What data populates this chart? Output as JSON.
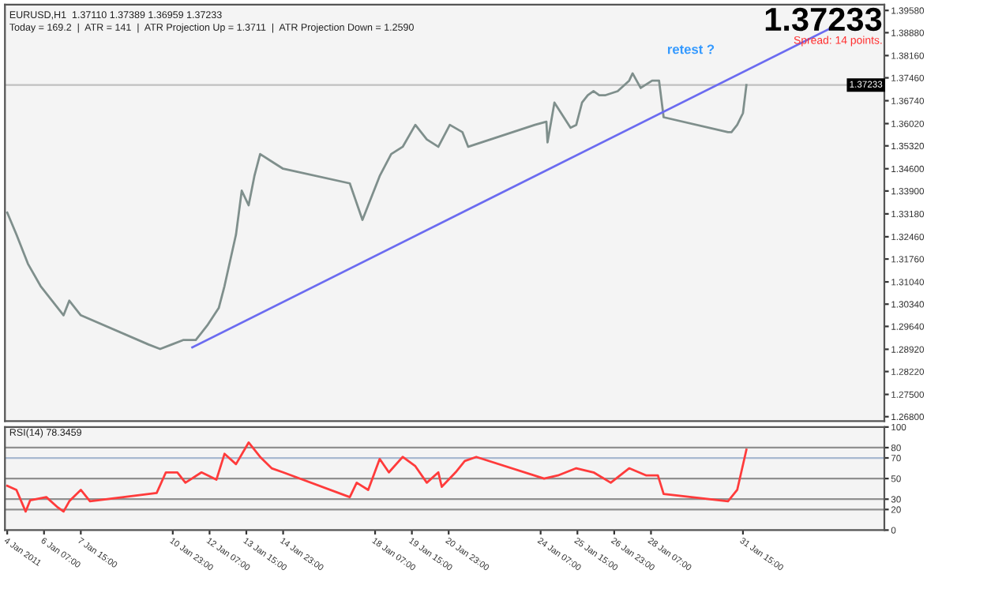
{
  "chart_data": [
    {
      "type": "line",
      "title": "EURUSD,H1  1.37110 1.37389 1.36959 1.37233",
      "subtitle": "Today = 169.2  |  ATR = 141  |  ATR Projection Up = 1.3711  |  ATR Projection Down = 1.2590",
      "series": [
        {
          "color": "#7f8f8c",
          "x": [
            "2011-01-04T23:00",
            "2011-01-05T07:00",
            "2011-01-05T17:00",
            "2011-01-06T04:00",
            "2011-01-06T14:00",
            "2011-01-07T00:00",
            "2011-01-07T05:00",
            "2011-01-07T15:00",
            "2011-01-10T02:00",
            "2011-01-10T12:00",
            "2011-01-10T22:00",
            "2011-01-11T08:00",
            "2011-01-11T19:00",
            "2011-01-12T05:00",
            "2011-01-12T15:00",
            "2011-01-12T20:00",
            "2011-01-13T06:00",
            "2011-01-13T11:00",
            "2011-01-13T17:00",
            "2011-01-13T22:00",
            "2011-01-14T03:00",
            "2011-01-14T13:00",
            "2011-01-14T23:00",
            "2011-01-17T09:00",
            "2011-01-17T20:00",
            "2011-01-18T01:00",
            "2011-01-18T11:00",
            "2011-01-18T21:00",
            "2011-01-19T07:00",
            "2011-01-19T18:00",
            "2011-01-20T04:00",
            "2011-01-20T14:00",
            "2011-01-21T00:00",
            "2011-01-21T11:00",
            "2011-01-21T16:00",
            "2011-01-24T02:00",
            "2011-01-24T12:00",
            "2011-01-24T13:00",
            "2011-01-24T19:00",
            "2011-01-25T09:00",
            "2011-01-25T14:00",
            "2011-01-25T19:00",
            "2011-01-26T00:00",
            "2011-01-26T05:00",
            "2011-01-26T10:00",
            "2011-01-26T15:00",
            "2011-01-27T02:00",
            "2011-01-27T12:00",
            "2011-01-27T15:00",
            "2011-01-27T22:00",
            "2011-01-28T08:00",
            "2011-01-28T14:00",
            "2011-01-28T18:00",
            "2011-01-31T02:00",
            "2011-01-31T05:00",
            "2011-01-31T10:00",
            "2011-01-31T15:00",
            "2011-01-31T18:00"
          ],
          "values": [
            1.3322,
            1.3253,
            1.3161,
            1.3091,
            1.3045,
            1.2999,
            1.3045,
            1.2999,
            1.2907,
            1.2893,
            1.2907,
            1.2921,
            1.2921,
            1.2967,
            1.3022,
            1.3091,
            1.3253,
            1.3391,
            1.3345,
            1.3437,
            1.3506,
            1.3483,
            1.346,
            1.3414,
            1.3299,
            1.3345,
            1.3437,
            1.3506,
            1.3529,
            1.3598,
            1.3552,
            1.3529,
            1.3598,
            1.3575,
            1.3529,
            1.3598,
            1.3608,
            1.3543,
            1.3668,
            1.3589,
            1.3598,
            1.3668,
            1.3691,
            1.3704,
            1.3691,
            1.3691,
            1.3704,
            1.3737,
            1.376,
            1.3714,
            1.3737,
            1.3737,
            1.3622,
            1.3575,
            1.3575,
            1.3598,
            1.3635,
            1.3723
          ]
        },
        {
          "color": "#6b6bf0",
          "x": [
            "2011-01-11T16:00",
            "2011-02-03T22:00"
          ],
          "values": [
            1.2898,
            1.3907
          ]
        }
      ],
      "ylim": [
        1.2666,
        1.3976
      ],
      "xlim": [
        "2011-01-04T21:00",
        "2011-02-05T18:00"
      ],
      "yticks": [
        {
          "value": 1.3958,
          "label": "1.39580"
        },
        {
          "value": 1.3888,
          "label": "1.38880"
        },
        {
          "value": 1.3816,
          "label": "1.38160"
        },
        {
          "value": 1.3746,
          "label": "1.37460"
        },
        {
          "value": 1.3674,
          "label": "1.36740"
        },
        {
          "value": 1.3602,
          "label": "1.36020"
        },
        {
          "value": 1.3532,
          "label": "1.35320"
        },
        {
          "value": 1.346,
          "label": "1.34600"
        },
        {
          "value": 1.339,
          "label": "1.33900"
        },
        {
          "value": 1.3318,
          "label": "1.33180"
        },
        {
          "value": 1.3246,
          "label": "1.32460"
        },
        {
          "value": 1.3176,
          "label": "1.31760"
        },
        {
          "value": 1.3104,
          "label": "1.31040"
        },
        {
          "value": 1.3034,
          "label": "1.30340"
        },
        {
          "value": 1.2964,
          "label": "1.29640"
        },
        {
          "value": 1.2892,
          "label": "1.28920"
        },
        {
          "value": 1.2822,
          "label": "1.28220"
        },
        {
          "value": 1.275,
          "label": "1.27500"
        },
        {
          "value": 1.268,
          "label": "1.26800"
        }
      ],
      "tick_labels": "y",
      "ref_lines": [
        {
          "axis": "y",
          "value": 1.37233,
          "label": "1.37233",
          "color": "#c0c0c0"
        }
      ],
      "annotations": [
        "retest ?",
        "1.37233",
        "Spread: 14 points."
      ]
    },
    {
      "type": "line",
      "title": "RSI(14) 78.3459",
      "series": [
        {
          "color": "#ff3b3b",
          "x": [
            "2011-01-04T23:00",
            "2011-01-05T07:00",
            "2011-01-05T15:00",
            "2011-01-05T19:00",
            "2011-01-06T09:00",
            "2011-01-06T19:00",
            "2011-01-07T00:00",
            "2011-01-07T05:00",
            "2011-01-07T15:00",
            "2011-01-07T23:00",
            "2011-01-10T09:00",
            "2011-01-10T17:00",
            "2011-01-11T03:00",
            "2011-01-11T10:00",
            "2011-01-12T00:00",
            "2011-01-12T13:00",
            "2011-01-12T20:00",
            "2011-01-13T06:00",
            "2011-01-13T17:00",
            "2011-01-14T03:00",
            "2011-01-14T13:00",
            "2011-01-14T23:00",
            "2011-01-17T09:00",
            "2011-01-17T15:00",
            "2011-01-18T01:00",
            "2011-01-18T11:00",
            "2011-01-18T19:00",
            "2011-01-19T07:00",
            "2011-01-19T18:00",
            "2011-01-20T04:00",
            "2011-01-20T14:00",
            "2011-01-20T17:00",
            "2011-01-21T05:00",
            "2011-01-21T13:00",
            "2011-01-21T23:00",
            "2011-01-24T10:00",
            "2011-01-24T22:00",
            "2011-01-25T14:00",
            "2011-01-26T05:00",
            "2011-01-26T20:00",
            "2011-01-27T12:00",
            "2011-01-28T03:00",
            "2011-01-28T13:00",
            "2011-01-28T18:00",
            "2011-01-31T02:00",
            "2011-01-31T10:00",
            "2011-01-31T18:00"
          ],
          "values": [
            43,
            39,
            18,
            29,
            32,
            22,
            18,
            28,
            39,
            28,
            36,
            56,
            56,
            46,
            56,
            49,
            74,
            64,
            85,
            71,
            60,
            56,
            32,
            46,
            39,
            69,
            56,
            71,
            62,
            46,
            56,
            42,
            56,
            67,
            71,
            50,
            53,
            60,
            56,
            46,
            60,
            53,
            53,
            35,
            28,
            39,
            78
          ]
        }
      ],
      "ylim": [
        0,
        100
      ],
      "xlim": [
        "2011-01-04T21:00",
        "2011-02-05T18:00"
      ],
      "yticks": [
        0,
        20,
        30,
        50,
        70,
        80,
        100
      ],
      "xticks": [
        {
          "value": "2011-01-04T23:00",
          "label": "4 Jan 2011"
        },
        {
          "value": "2011-01-06T07:00",
          "label": "6 Jan 07:00"
        },
        {
          "value": "2011-01-07T15:00",
          "label": "7 Jan 15:00"
        },
        {
          "value": "2011-01-10T23:00",
          "label": "10 Jan 23:00"
        },
        {
          "value": "2011-01-12T07:00",
          "label": "12 Jan 07:00"
        },
        {
          "value": "2011-01-13T15:00",
          "label": "13 Jan 15:00"
        },
        {
          "value": "2011-01-14T23:00",
          "label": "14 Jan 23:00"
        },
        {
          "value": "2011-01-18T07:00",
          "label": "18 Jan 07:00"
        },
        {
          "value": "2011-01-19T15:00",
          "label": "19 Jan 15:00"
        },
        {
          "value": "2011-01-20T23:00",
          "label": "20 Jan 23:00"
        },
        {
          "value": "2011-01-24T07:00",
          "label": "24 Jan 07:00"
        },
        {
          "value": "2011-01-25T15:00",
          "label": "25 Jan 15:00"
        },
        {
          "value": "2011-01-26T23:00",
          "label": "26 Jan 23:00"
        },
        {
          "value": "2011-01-28T07:00",
          "label": "28 Jan 07:00"
        },
        {
          "value": "2011-01-31T15:00",
          "label": "31 Jan 15:00"
        }
      ],
      "ref_lines": [
        {
          "axis": "y",
          "value": 80,
          "color": "#909090"
        },
        {
          "axis": "y",
          "value": 70,
          "color": "#a8b8d0"
        },
        {
          "axis": "y",
          "value": 50,
          "color": "#909090"
        },
        {
          "axis": "y",
          "value": 30,
          "color": "#909090"
        },
        {
          "axis": "y",
          "value": 20,
          "color": "#909090"
        }
      ]
    }
  ]
}
